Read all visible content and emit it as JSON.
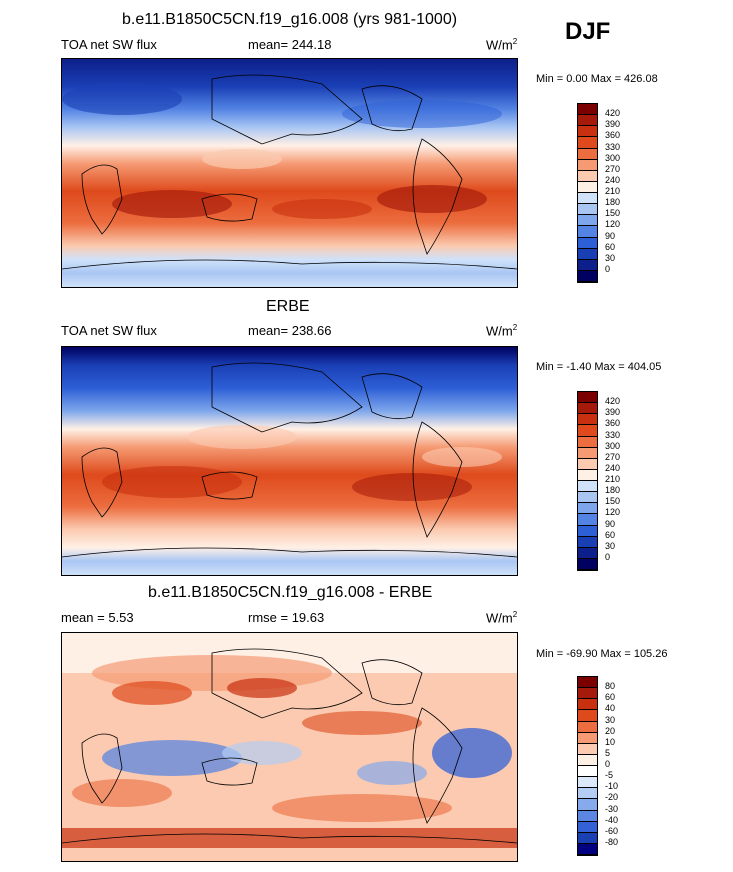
{
  "season": "DJF",
  "panels": [
    {
      "title": "b.e11.B1850C5CN.f19_g16.008 (yrs 981-1000)",
      "left": "TOA net SW flux",
      "center": "mean= 244.18",
      "units": "W/m",
      "units_sup": "2",
      "minmax": "Min =   0.00 Max = 426.08",
      "scale": "full",
      "labels": [
        "420",
        "390",
        "360",
        "330",
        "300",
        "270",
        "240",
        "210",
        "180",
        "150",
        "120",
        "90",
        "60",
        "30",
        "0"
      ]
    },
    {
      "title": "ERBE",
      "left": "TOA net SW flux",
      "center": "mean= 238.66",
      "units": "W/m",
      "units_sup": "2",
      "minmax": "Min =  -1.40 Max = 404.05",
      "scale": "full",
      "labels": [
        "420",
        "390",
        "360",
        "330",
        "300",
        "270",
        "240",
        "210",
        "180",
        "150",
        "120",
        "90",
        "60",
        "30",
        "0"
      ]
    },
    {
      "title": "b.e11.B1850C5CN.f19_g16.008 - ERBE",
      "left": "mean =   5.53",
      "center": "rmse =  19.63",
      "units": "W/m",
      "units_sup": "2",
      "minmax": "Min = -69.90 Max = 105.26",
      "scale": "diff",
      "labels": [
        "80",
        "60",
        "40",
        "30",
        "20",
        "10",
        "5",
        "0",
        "-5",
        "-10",
        "-20",
        "-30",
        "-40",
        "-60",
        "-80"
      ]
    }
  ],
  "colors": {
    "full": [
      "#7b0000",
      "#a51a0a",
      "#c8300f",
      "#de4a1c",
      "#ec6d3f",
      "#f59a73",
      "#fbcab0",
      "#fff0e6",
      "#cfe2fa",
      "#a9c6f3",
      "#7ea6ec",
      "#5384e4",
      "#2d5fd6",
      "#1a3fb5",
      "#0d1f8a",
      "#000060"
    ],
    "diff": [
      "#7b0000",
      "#a51a0a",
      "#c8300f",
      "#de4a1c",
      "#ec6d3f",
      "#f59a73",
      "#fbcab0",
      "#fff0e6",
      "#ffffff",
      "#dbe9fb",
      "#b3cdf4",
      "#86aaec",
      "#5b86e2",
      "#3462d6",
      "#1b40b4",
      "#000080"
    ]
  }
}
